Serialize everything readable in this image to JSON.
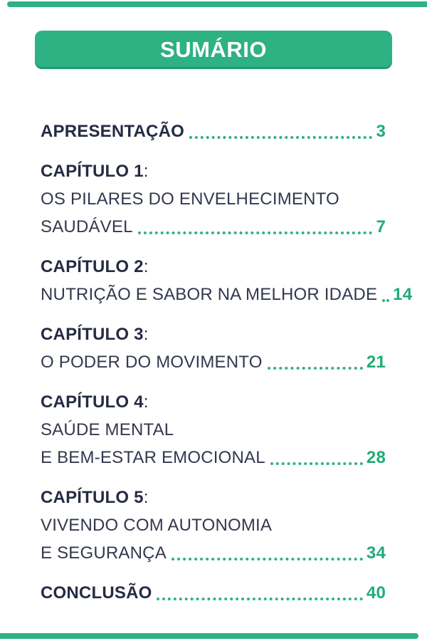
{
  "theme": {
    "accent_green": "#2EB183",
    "page_num_green": "#1FAC78",
    "text_dark": "#262B44",
    "text_regular": "#33384E",
    "banner_text": "#FFFFFF",
    "background": "#FFFFFF"
  },
  "header": {
    "title": "SUMÁRIO"
  },
  "toc": {
    "heading_colon": ":",
    "entries": [
      {
        "title": "APRESENTAÇÃO",
        "page": "3"
      },
      {
        "heading": "CAPÍTULO 1",
        "sub1": "OS PILARES DO ENVELHECIMENTO",
        "title": "SAUDÁVEL",
        "page": "7"
      },
      {
        "heading": "CAPÍTULO 2",
        "title": "NUTRIÇÃO E SABOR NA MELHOR IDADE",
        "page": "14"
      },
      {
        "heading": "CAPÍTULO 3",
        "title": "O PODER DO MOVIMENTO",
        "page": "21"
      },
      {
        "heading": "CAPÍTULO 4",
        "sub1": "SAÚDE MENTAL",
        "title": "E BEM-ESTAR EMOCIONAL",
        "page": "28"
      },
      {
        "heading": "CAPÍTULO 5",
        "sub1": "VIVENDO COM AUTONOMIA",
        "title": "E SEGURANÇA",
        "page": "34"
      },
      {
        "title": "CONCLUSÃO",
        "page": "40"
      }
    ]
  }
}
